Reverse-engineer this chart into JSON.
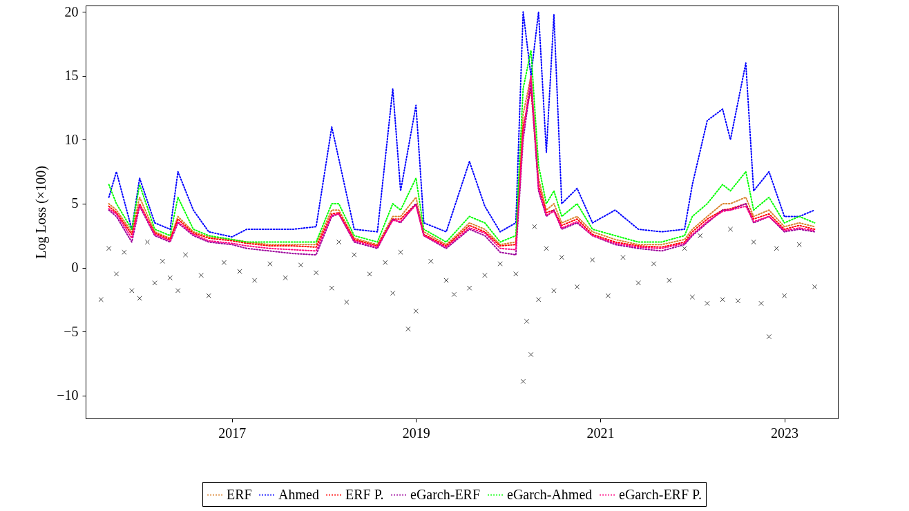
{
  "chart_data": {
    "type": "line",
    "ylabel": "Log Loss (×100)",
    "xlim": [
      "2015-06",
      "2023-08"
    ],
    "xticks": [
      "2017",
      "2019",
      "2021",
      "2023"
    ],
    "ylim": [
      -11.8,
      20.5
    ],
    "yticks": [
      20,
      15,
      10,
      5,
      0,
      {
        "value": -5,
        "label": "−5"
      },
      {
        "value": -10,
        "label": "−10"
      }
    ],
    "legend": "bottom",
    "marker": "none",
    "line_style": "dotted",
    "x": [
      "2015-09",
      "2015-10",
      "2015-12",
      "2016-01",
      "2016-03",
      "2016-05",
      "2016-06",
      "2016-08",
      "2016-10",
      "2017-01",
      "2017-03",
      "2017-06",
      "2017-09",
      "2017-12",
      "2018-02",
      "2018-03",
      "2018-05",
      "2018-08",
      "2018-10",
      "2018-11",
      "2019-01",
      "2019-02",
      "2019-05",
      "2019-08",
      "2019-10",
      "2019-12",
      "2020-02",
      "2020-03",
      "2020-04",
      "2020-05",
      "2020-06",
      "2020-07",
      "2020-08",
      "2020-10",
      "2020-12",
      "2021-03",
      "2021-06",
      "2021-09",
      "2021-12",
      "2022-01",
      "2022-03",
      "2022-05",
      "2022-06",
      "2022-08",
      "2022-09",
      "2022-11",
      "2023-01",
      "2023-03",
      "2023-05"
    ],
    "series": [
      {
        "type": "scatter",
        "marker": "cross",
        "color": "#404040",
        "x": [
          "2015-08",
          "2015-09",
          "2015-10",
          "2015-11",
          "2015-12",
          "2016-01",
          "2016-02",
          "2016-03",
          "2016-04",
          "2016-05",
          "2016-06",
          "2016-07",
          "2016-09",
          "2016-10",
          "2016-12",
          "2017-02",
          "2017-04",
          "2017-06",
          "2017-08",
          "2017-10",
          "2017-12",
          "2018-02",
          "2018-03",
          "2018-04",
          "2018-05",
          "2018-07",
          "2018-09",
          "2018-10",
          "2018-11",
          "2018-12",
          "2019-01",
          "2019-03",
          "2019-05",
          "2019-06",
          "2019-08",
          "2019-10",
          "2019-12",
          "2020-02",
          "2020-03",
          "2020-03-15",
          "2020-04",
          "2020-04-15",
          "2020-05",
          "2020-06",
          "2020-07",
          "2020-08",
          "2020-10",
          "2020-12",
          "2021-02",
          "2021-04",
          "2021-06",
          "2021-08",
          "2021-10",
          "2021-12",
          "2022-01",
          "2022-02",
          "2022-03",
          "2022-05",
          "2022-06",
          "2022-07",
          "2022-09",
          "2022-10",
          "2022-11",
          "2022-12",
          "2023-01",
          "2023-03",
          "2023-05"
        ],
        "values": [
          -2.5,
          1.5,
          -0.5,
          1.2,
          -1.8,
          -2.4,
          2.0,
          -1.2,
          0.5,
          -0.8,
          -1.8,
          1.0,
          -0.6,
          -2.2,
          0.4,
          -0.3,
          -1.0,
          0.3,
          -0.8,
          0.2,
          -0.4,
          -1.6,
          2.0,
          -2.7,
          1.0,
          -0.5,
          0.4,
          -2.0,
          1.2,
          -4.8,
          -3.4,
          0.5,
          -1.0,
          -2.1,
          -1.6,
          -0.6,
          0.3,
          -0.5,
          -8.9,
          -4.2,
          -6.8,
          3.2,
          -2.5,
          1.5,
          -1.8,
          0.8,
          -1.5,
          0.6,
          -2.2,
          0.8,
          -1.2,
          0.3,
          -1.0,
          1.5,
          -2.3,
          2.5,
          -2.8,
          -2.5,
          3.0,
          -2.6,
          2.0,
          -2.8,
          -5.4,
          1.5,
          -2.2,
          1.8,
          -1.5
        ]
      },
      {
        "name": "ERF",
        "color": "#d9822b",
        "values": [
          5.0,
          4.5,
          2.8,
          5.5,
          2.8,
          2.3,
          4.0,
          2.8,
          2.4,
          2.2,
          2.0,
          1.8,
          1.8,
          1.8,
          4.5,
          4.5,
          2.3,
          1.8,
          4.0,
          4.0,
          5.5,
          2.8,
          1.8,
          3.5,
          3.0,
          1.8,
          2.0,
          12.0,
          15.0,
          7.0,
          4.5,
          5.0,
          3.5,
          4.0,
          2.8,
          2.2,
          1.8,
          1.8,
          2.2,
          3.0,
          4.0,
          5.0,
          5.0,
          5.5,
          4.0,
          4.5,
          3.2,
          3.5,
          3.2
        ]
      },
      {
        "name": "Ahmed",
        "color": "#0000ff",
        "values": [
          5.5,
          7.5,
          3.0,
          7.0,
          3.5,
          3.0,
          7.5,
          4.5,
          2.8,
          2.4,
          3.0,
          3.0,
          3.0,
          3.2,
          11.0,
          8.5,
          3.0,
          2.8,
          14.0,
          6.0,
          12.7,
          3.5,
          2.8,
          8.3,
          4.8,
          2.8,
          3.5,
          20.0,
          15.0,
          20.0,
          9.0,
          19.8,
          5.0,
          6.2,
          3.5,
          4.5,
          3.0,
          2.8,
          3.0,
          6.5,
          11.5,
          12.4,
          10.0,
          16.0,
          6.0,
          7.5,
          4.0,
          4.0,
          4.5
        ]
      },
      {
        "name": "ERF P.",
        "color": "#ff0000",
        "values": [
          4.8,
          4.3,
          2.6,
          5.0,
          2.7,
          2.2,
          3.8,
          2.7,
          2.3,
          2.1,
          1.9,
          1.7,
          1.7,
          1.6,
          4.2,
          4.3,
          2.2,
          1.7,
          3.8,
          3.8,
          5.0,
          2.6,
          1.7,
          3.3,
          2.8,
          1.7,
          1.8,
          11.0,
          14.0,
          6.5,
          4.3,
          4.5,
          3.3,
          3.8,
          2.6,
          2.0,
          1.7,
          1.6,
          2.0,
          2.8,
          3.8,
          4.5,
          4.6,
          5.0,
          3.8,
          4.2,
          3.0,
          3.3,
          3.0
        ]
      },
      {
        "name": "eGarch-ERF",
        "color": "#9b009b",
        "values": [
          4.5,
          4.0,
          2.0,
          4.8,
          2.5,
          2.0,
          3.5,
          2.5,
          2.0,
          1.8,
          1.5,
          1.3,
          1.1,
          1.0,
          4.0,
          4.2,
          2.0,
          1.5,
          3.8,
          3.5,
          5.0,
          2.5,
          1.5,
          3.0,
          2.5,
          1.2,
          1.0,
          10.0,
          14.5,
          6.0,
          4.0,
          4.5,
          3.0,
          3.5,
          2.5,
          1.8,
          1.5,
          1.3,
          1.8,
          2.5,
          3.5,
          4.5,
          4.5,
          5.0,
          3.5,
          4.0,
          2.8,
          3.0,
          2.8
        ]
      },
      {
        "name": "eGarch-Ahmed",
        "color": "#00ff00",
        "values": [
          6.5,
          5.0,
          3.0,
          6.5,
          3.0,
          2.5,
          5.5,
          3.0,
          2.5,
          2.2,
          2.0,
          2.0,
          2.0,
          2.0,
          5.0,
          5.0,
          2.5,
          2.0,
          5.0,
          4.5,
          7.0,
          3.0,
          2.0,
          4.0,
          3.5,
          2.0,
          2.5,
          14.0,
          17.0,
          8.0,
          5.0,
          6.0,
          4.0,
          5.0,
          3.0,
          2.5,
          2.0,
          2.0,
          2.5,
          4.0,
          5.0,
          6.5,
          6.0,
          7.5,
          4.5,
          5.5,
          3.5,
          4.0,
          3.5
        ]
      },
      {
        "name": "eGarch-ERF P.",
        "color": "#ff0080",
        "values": [
          4.6,
          4.2,
          2.3,
          4.9,
          2.6,
          2.1,
          3.6,
          2.6,
          2.1,
          1.9,
          1.7,
          1.5,
          1.4,
          1.3,
          4.1,
          4.2,
          2.1,
          1.6,
          3.7,
          3.6,
          4.9,
          2.5,
          1.6,
          3.1,
          2.7,
          1.5,
          1.4,
          10.5,
          15.0,
          6.2,
          4.1,
          4.4,
          3.1,
          3.6,
          2.5,
          1.9,
          1.6,
          1.5,
          1.9,
          2.6,
          3.6,
          4.4,
          4.5,
          4.8,
          3.6,
          4.0,
          2.9,
          3.1,
          2.9
        ]
      }
    ]
  }
}
